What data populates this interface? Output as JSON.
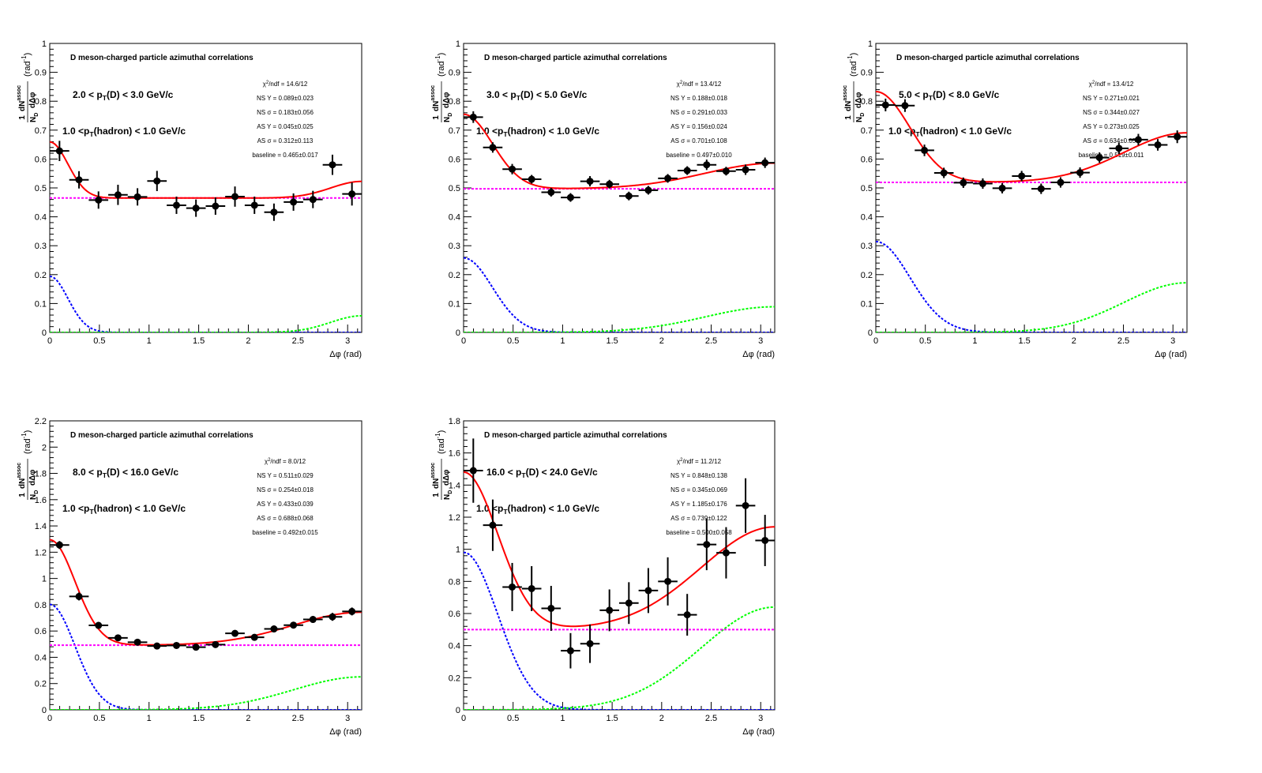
{
  "colors": {
    "data_points": "#000000",
    "total_fit": "#ff0000",
    "near_side": "#0000ff",
    "away_side": "#00ff00",
    "baseline": "#ff00ff"
  },
  "chart_data": [
    {
      "type": "scatter",
      "title": "D meson-charged particle azimuthal correlations",
      "xlabel": "Δφ (rad)",
      "ylabel_main": "dN",
      "ylabel_sup": "assoc",
      "ylabel_den": "dΔφ",
      "ylabel_pre": "1",
      "ylabel_nd": "N",
      "ylabel_nd_sub": "D",
      "ylabel_unit": "(rad",
      "ylabel_unit_sup": "-1",
      "ylabel_close": ")",
      "xlim": [
        0,
        3.14159
      ],
      "ylim": [
        0,
        1
      ],
      "xticks": [
        "0",
        "0.5",
        "1",
        "1.5",
        "2",
        "2.5",
        "3"
      ],
      "yticks": [
        "0",
        "0.1",
        "0.2",
        "0.3",
        "0.4",
        "0.5",
        "0.6",
        "0.7",
        "0.8",
        "0.9",
        "1"
      ],
      "ytick_values": [
        0,
        0.1,
        0.2,
        0.3,
        0.4,
        0.5,
        0.6,
        0.7,
        0.8,
        0.9,
        1
      ],
      "pt_d_label": "2.0 < p_T(D) < 3.0 GeV/c",
      "pt_h_label": "1.0 <p_T(hadron) < 1.0 GeV/c",
      "stats": [
        "χ²/ndf = 14.6/12",
        "NS Y = 0.089±0.023",
        "NS σ = 0.183±0.056",
        "AS Y = 0.045±0.025",
        "AS σ = 0.312±0.113",
        "baseline = 0.465±0.017"
      ],
      "fit": {
        "baseline": 0.465,
        "ns_y": 0.089,
        "ns_sigma": 0.183,
        "as_y": 0.045,
        "as_sigma": 0.312
      },
      "points": {
        "x": [
          0.0982,
          0.2945,
          0.4909,
          0.6872,
          0.8836,
          1.0799,
          1.2763,
          1.4726,
          1.669,
          1.8653,
          2.0617,
          2.258,
          2.4544,
          2.6507,
          2.8471,
          3.0434
        ],
        "y": [
          0.628,
          0.528,
          0.458,
          0.476,
          0.469,
          0.524,
          0.44,
          0.43,
          0.437,
          0.47,
          0.44,
          0.416,
          0.451,
          0.46,
          0.58,
          0.479
        ],
        "err": [
          0.035,
          0.03,
          0.03,
          0.035,
          0.03,
          0.035,
          0.03,
          0.03,
          0.03,
          0.035,
          0.03,
          0.03,
          0.03,
          0.03,
          0.035,
          0.04
        ]
      }
    },
    {
      "type": "scatter",
      "title": "D meson-charged particle azimuthal correlations",
      "xlabel": "Δφ (rad)",
      "ylabel_main": "dN",
      "ylabel_sup": "assoc",
      "ylabel_den": "dΔφ",
      "ylabel_pre": "1",
      "ylabel_nd": "N",
      "ylabel_nd_sub": "D",
      "ylabel_unit": "(rad",
      "ylabel_unit_sup": "-1",
      "ylabel_close": ")",
      "xlim": [
        0,
        3.14159
      ],
      "ylim": [
        0,
        1
      ],
      "xticks": [
        "0",
        "0.5",
        "1",
        "1.5",
        "2",
        "2.5",
        "3"
      ],
      "yticks": [
        "0",
        "0.1",
        "0.2",
        "0.3",
        "0.4",
        "0.5",
        "0.6",
        "0.7",
        "0.8",
        "0.9",
        "1"
      ],
      "ytick_values": [
        0,
        0.1,
        0.2,
        0.3,
        0.4,
        0.5,
        0.6,
        0.7,
        0.8,
        0.9,
        1
      ],
      "pt_d_label": "3.0 < p_T(D) < 5.0 GeV/c",
      "pt_h_label": "1.0 <p_T(hadron) < 1.0 GeV/c",
      "stats": [
        "χ²/ndf = 13.4/12",
        "NS Y = 0.188±0.018",
        "NS σ = 0.291±0.033",
        "AS Y = 0.156±0.024",
        "AS σ = 0.701±0.108",
        "baseline = 0.497±0.010"
      ],
      "fit": {
        "baseline": 0.497,
        "ns_y": 0.188,
        "ns_sigma": 0.291,
        "as_y": 0.156,
        "as_sigma": 0.701
      },
      "points": {
        "x": [
          0.0982,
          0.2945,
          0.4909,
          0.6872,
          0.8836,
          1.0799,
          1.2763,
          1.4726,
          1.669,
          1.8653,
          2.0617,
          2.258,
          2.4544,
          2.6507,
          2.8471,
          3.0434
        ],
        "y": [
          0.745,
          0.64,
          0.565,
          0.53,
          0.485,
          0.467,
          0.523,
          0.513,
          0.472,
          0.492,
          0.533,
          0.56,
          0.58,
          0.558,
          0.563,
          0.587
        ],
        "err": [
          0.02,
          0.018,
          0.018,
          0.015,
          0.015,
          0.015,
          0.018,
          0.015,
          0.015,
          0.015,
          0.015,
          0.015,
          0.018,
          0.015,
          0.018,
          0.018
        ]
      }
    },
    {
      "type": "scatter",
      "title": "D meson-charged particle azimuthal correlations",
      "xlabel": "Δφ (rad)",
      "ylabel_main": "dN",
      "ylabel_sup": "assoc",
      "ylabel_den": "dΔφ",
      "ylabel_pre": "1",
      "ylabel_nd": "N",
      "ylabel_nd_sub": "D",
      "ylabel_unit": "(rad",
      "ylabel_unit_sup": "-1",
      "ylabel_close": ")",
      "xlim": [
        0,
        3.14159
      ],
      "ylim": [
        0,
        1
      ],
      "xticks": [
        "0",
        "0.5",
        "1",
        "1.5",
        "2",
        "2.5",
        "3"
      ],
      "yticks": [
        "0",
        "0.1",
        "0.2",
        "0.3",
        "0.4",
        "0.5",
        "0.6",
        "0.7",
        "0.8",
        "0.9",
        "1"
      ],
      "ytick_values": [
        0,
        0.1,
        0.2,
        0.3,
        0.4,
        0.5,
        0.6,
        0.7,
        0.8,
        0.9,
        1
      ],
      "pt_d_label": "5.0 < p_T(D) < 8.0 GeV/c",
      "pt_h_label": "1.0 <p_T(hadron) < 1.0 GeV/c",
      "stats": [
        "χ²/ndf = 13.4/12",
        "NS Y = 0.271±0.021",
        "NS σ = 0.344±0.027",
        "AS Y = 0.273±0.025",
        "AS σ = 0.634±0.059",
        "baseline = 0.519±0.011"
      ],
      "fit": {
        "baseline": 0.519,
        "ns_y": 0.271,
        "ns_sigma": 0.344,
        "as_y": 0.273,
        "as_sigma": 0.634
      },
      "points": {
        "x": [
          0.0982,
          0.2945,
          0.4909,
          0.6872,
          0.8836,
          1.0799,
          1.2763,
          1.4726,
          1.669,
          1.8653,
          2.0617,
          2.258,
          2.4544,
          2.6507,
          2.8471,
          3.0434
        ],
        "y": [
          0.787,
          0.785,
          0.63,
          0.552,
          0.518,
          0.515,
          0.499,
          0.541,
          0.497,
          0.519,
          0.553,
          0.605,
          0.637,
          0.667,
          0.649,
          0.677
        ],
        "err": [
          0.022,
          0.022,
          0.02,
          0.018,
          0.018,
          0.018,
          0.018,
          0.018,
          0.018,
          0.018,
          0.018,
          0.018,
          0.02,
          0.02,
          0.02,
          0.022
        ]
      }
    },
    {
      "type": "scatter",
      "title": "D meson-charged particle azimuthal correlations",
      "xlabel": "Δφ (rad)",
      "ylabel_main": "dN",
      "ylabel_sup": "assoc",
      "ylabel_den": "dΔφ",
      "ylabel_pre": "1",
      "ylabel_nd": "N",
      "ylabel_nd_sub": "D",
      "ylabel_unit": "(rad",
      "ylabel_unit_sup": "-1",
      "ylabel_close": ")",
      "xlim": [
        0,
        3.14159
      ],
      "ylim": [
        0,
        2.2
      ],
      "xticks": [
        "0",
        "0.5",
        "1",
        "1.5",
        "2",
        "2.5",
        "3"
      ],
      "yticks": [
        "0",
        "0.2",
        "0.4",
        "0.6",
        "0.8",
        "1",
        "1.2",
        "1.4",
        "1.6",
        "1.8",
        "2",
        "2.2"
      ],
      "ytick_values": [
        0,
        0.2,
        0.4,
        0.6,
        0.8,
        1.0,
        1.2,
        1.4,
        1.6,
        1.8,
        2.0,
        2.2
      ],
      "pt_d_label": "8.0 < p_T(D) < 16.0 GeV/c",
      "pt_h_label": "1.0 <p_T(hadron) < 1.0 GeV/c",
      "stats": [
        "χ²/ndf = 8.0/12",
        "NS Y = 0.511±0.029",
        "NS σ = 0.254±0.018",
        "AS Y = 0.433±0.039",
        "AS σ = 0.688±0.068",
        "baseline = 0.492±0.015"
      ],
      "fit": {
        "baseline": 0.492,
        "ns_y": 0.511,
        "ns_sigma": 0.254,
        "as_y": 0.433,
        "as_sigma": 0.688
      },
      "points": {
        "x": [
          0.0982,
          0.2945,
          0.4909,
          0.6872,
          0.8836,
          1.0799,
          1.2763,
          1.4726,
          1.669,
          1.8653,
          2.0617,
          2.258,
          2.4544,
          2.6507,
          2.8471,
          3.0434
        ],
        "y": [
          1.255,
          0.863,
          0.643,
          0.548,
          0.515,
          0.486,
          0.49,
          0.477,
          0.497,
          0.582,
          0.552,
          0.616,
          0.645,
          0.688,
          0.708,
          0.749
        ],
        "err": [
          0.03,
          0.03,
          0.025,
          0.025,
          0.02,
          0.02,
          0.02,
          0.02,
          0.02,
          0.02,
          0.025,
          0.025,
          0.025,
          0.025,
          0.03,
          0.03
        ]
      }
    },
    {
      "type": "scatter",
      "title": "D meson-charged particle azimuthal correlations",
      "xlabel": "Δφ (rad)",
      "ylabel_main": "dN",
      "ylabel_sup": "assoc",
      "ylabel_den": "dΔφ",
      "ylabel_pre": "1",
      "ylabel_nd": "N",
      "ylabel_nd_sub": "D",
      "ylabel_unit": "(rad",
      "ylabel_unit_sup": "-1",
      "ylabel_close": ")",
      "xlim": [
        0,
        3.14159
      ],
      "ylim": [
        0,
        1.8
      ],
      "xticks": [
        "0",
        "0.5",
        "1",
        "1.5",
        "2",
        "2.5",
        "3"
      ],
      "yticks": [
        "0",
        "0.2",
        "0.4",
        "0.6",
        "0.8",
        "1",
        "1.2",
        "1.4",
        "1.6",
        "1.8"
      ],
      "ytick_values": [
        0,
        0.2,
        0.4,
        0.6,
        0.8,
        1.0,
        1.2,
        1.4,
        1.6,
        1.8
      ],
      "pt_d_label": "16.0 < p_T(D) < 24.0 GeV/c",
      "pt_h_label": "1.0 <p_T(hadron) < 1.0 GeV/c",
      "stats": [
        "χ²/ndf = 11.2/12",
        "NS Y = 0.848±0.138",
        "NS σ = 0.345±0.069",
        "AS Y = 1.185±0.176",
        "AS σ = 0.739±0.122",
        "baseline = 0.500±0.058"
      ],
      "fit": {
        "baseline": 0.5,
        "ns_y": 0.848,
        "ns_sigma": 0.345,
        "as_y": 1.185,
        "as_sigma": 0.739
      },
      "points": {
        "x": [
          0.0982,
          0.2945,
          0.4909,
          0.6872,
          0.8836,
          1.0799,
          1.2763,
          1.4726,
          1.669,
          1.8653,
          2.0617,
          2.258,
          2.4544,
          2.6507,
          2.8471,
          3.0434
        ],
        "y": [
          1.49,
          1.15,
          0.765,
          0.755,
          0.632,
          0.368,
          0.412,
          0.62,
          0.665,
          0.743,
          0.8,
          0.592,
          1.03,
          0.978,
          1.272,
          1.055
        ],
        "err": [
          0.2,
          0.16,
          0.15,
          0.14,
          0.14,
          0.11,
          0.12,
          0.13,
          0.13,
          0.14,
          0.15,
          0.13,
          0.16,
          0.16,
          0.17,
          0.16
        ]
      }
    }
  ]
}
